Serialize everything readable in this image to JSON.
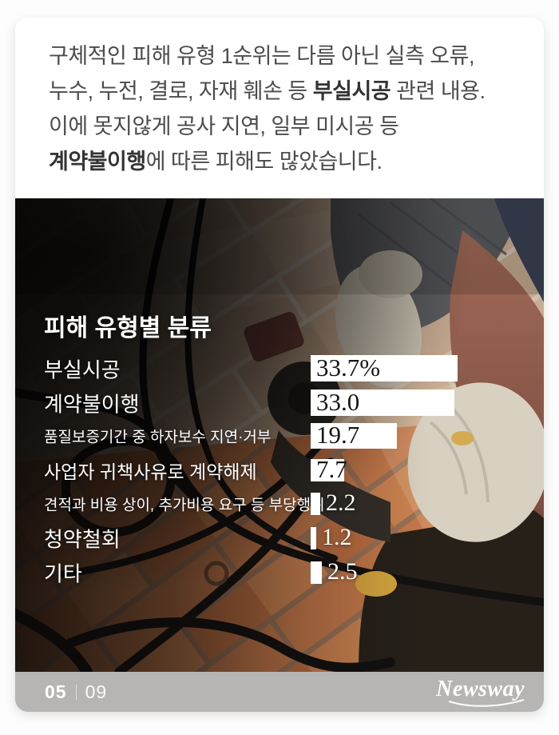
{
  "intro": {
    "lines": [
      {
        "pre": "구체적인 피해 유형 1순위는 다름 아닌 실측 오류,",
        "bold": "",
        "post": ""
      },
      {
        "pre": "누수, 누전, 결로, 자재 훼손 등 ",
        "bold": "부실시공",
        "post": " 관련 내용."
      },
      {
        "pre": "이에 못지않게 공사 지연, 일부 미시공 등",
        "bold": "",
        "post": ""
      },
      {
        "pre": "",
        "bold": "계약불이행",
        "post": "에 따른 피해도 많았습니다."
      }
    ]
  },
  "chart_data": {
    "type": "bar",
    "orientation": "horizontal",
    "title": "피해 유형별 분류",
    "unit": "%",
    "xlim": [
      0,
      35
    ],
    "grid": false,
    "legend": false,
    "bar_color": "#ffffff",
    "categories": [
      "부실시공",
      "계약불이행",
      "품질보증기간 중 하자보수 지연·거부",
      "사업자 귀책사유로 계약해제",
      "견적과 비용 상이, 추가비용 요구 등 부당행위",
      "청약철회",
      "기타"
    ],
    "values": [
      33.7,
      33.0,
      19.7,
      7.7,
      2.2,
      1.2,
      2.5
    ],
    "rows": [
      {
        "label": "부실시공",
        "value": 33.7,
        "display": "33.7%",
        "value_inside": true,
        "label_size": "l"
      },
      {
        "label": "계약불이행",
        "value": 33.0,
        "display": "33.0",
        "value_inside": true,
        "label_size": "l"
      },
      {
        "label": "품질보증기간 중 하자보수 지연·거부",
        "value": 19.7,
        "display": "19.7",
        "value_inside": true,
        "label_size": "s"
      },
      {
        "label": "사업자 귀책사유로 계약해제",
        "value": 7.7,
        "display": "7.7",
        "value_inside": true,
        "label_size": "m"
      },
      {
        "label": "견적과 비용 상이, 추가비용 요구 등 부당행위",
        "value": 2.2,
        "display": "2.2",
        "value_inside": false,
        "label_size": "s"
      },
      {
        "label": "청약철회",
        "value": 1.2,
        "display": "1.2",
        "value_inside": false,
        "label_size": "l"
      },
      {
        "label": "기타",
        "value": 2.5,
        "display": "2.5",
        "value_inside": false,
        "label_size": "l"
      }
    ]
  },
  "footer": {
    "page_current": "05",
    "page_total": "09",
    "brand": "Newsway"
  },
  "colors": {
    "footer_bar": "#b6b5b3",
    "intro_text": "#4c4c4c",
    "chart_text": "#ffffff",
    "bar_fill": "#ffffff",
    "value_inside_text": "#161616"
  }
}
